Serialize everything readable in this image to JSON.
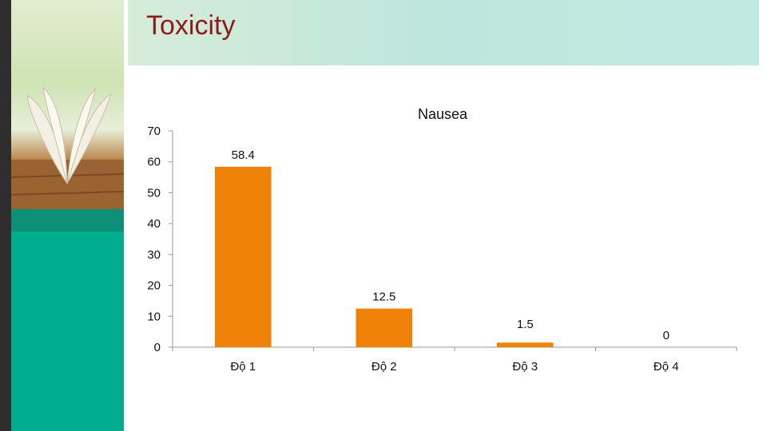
{
  "slide": {
    "title": "Toxicity"
  },
  "theme": {
    "title_color": "#8b1c1c",
    "bar_color": "#f0820a",
    "panel_teal": "#00ad8e"
  },
  "chart_data": {
    "type": "bar",
    "title": "Nausea",
    "categories": [
      "Độ 1",
      "Độ 2",
      "Độ 3",
      "Độ 4"
    ],
    "values": [
      58.4,
      12.5,
      1.5,
      0
    ],
    "data_labels": [
      "58.4",
      "12.5",
      "1.5",
      "0"
    ],
    "y_ticks": [
      "0",
      "10",
      "20",
      "30",
      "40",
      "50",
      "60",
      "70"
    ],
    "ylim": [
      0,
      70
    ],
    "grid": false,
    "xlabel": "",
    "ylabel": ""
  }
}
